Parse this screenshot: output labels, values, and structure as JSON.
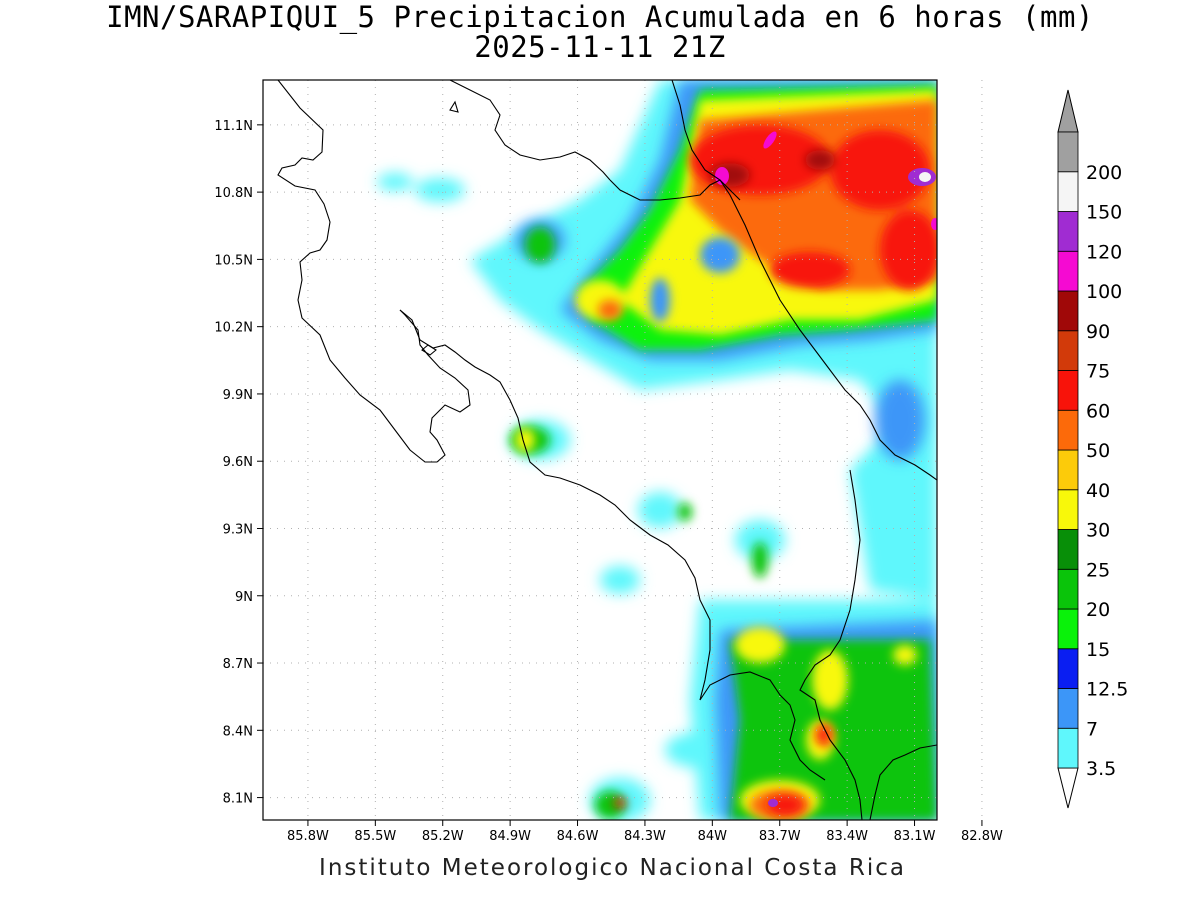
{
  "title": {
    "line1": "IMN/SARAPIQUI_5 Precipitacion Acumulada en 6 horas (mm)",
    "line2": "2025-11-11 21Z"
  },
  "credit": "Instituto Meteorologico Nacional Costa Rica",
  "map": {
    "lon_range": [
      -86.0,
      -83.0
    ],
    "lat_range": [
      8.0,
      11.3
    ],
    "lon_ticks": [
      {
        "value": -85.8,
        "label": "85.8W"
      },
      {
        "value": -85.5,
        "label": "85.5W"
      },
      {
        "value": -85.2,
        "label": "85.2W"
      },
      {
        "value": -84.9,
        "label": "84.9W"
      },
      {
        "value": -84.6,
        "label": "84.6W"
      },
      {
        "value": -84.3,
        "label": "84.3W"
      },
      {
        "value": -84.0,
        "label": "84W"
      },
      {
        "value": -83.7,
        "label": "83.7W"
      },
      {
        "value": -83.4,
        "label": "83.4W"
      },
      {
        "value": -83.1,
        "label": "83.1W"
      },
      {
        "value": -82.8,
        "label": "82.8W"
      }
    ],
    "lat_ticks": [
      {
        "value": 8.1,
        "label": "8.1N"
      },
      {
        "value": 8.4,
        "label": "8.4N"
      },
      {
        "value": 8.7,
        "label": "8.7N"
      },
      {
        "value": 9.0,
        "label": "9N"
      },
      {
        "value": 9.3,
        "label": "9.3N"
      },
      {
        "value": 9.6,
        "label": "9.6N"
      },
      {
        "value": 9.9,
        "label": "9.9N"
      },
      {
        "value": 10.2,
        "label": "10.2N"
      },
      {
        "value": 10.5,
        "label": "10.5N"
      },
      {
        "value": 10.8,
        "label": "10.8N"
      },
      {
        "value": 11.1,
        "label": "11.1N"
      }
    ],
    "grid": "dotted"
  },
  "colorbar": {
    "levels": [
      {
        "label": "3.5",
        "color": "#5ff7fc"
      },
      {
        "label": "7",
        "color": "#3c96f8"
      },
      {
        "label": "12.5",
        "color": "#0a1ef2"
      },
      {
        "label": "15",
        "color": "#0af20a"
      },
      {
        "label": "20",
        "color": "#0ac40a"
      },
      {
        "label": "25",
        "color": "#088f08"
      },
      {
        "label": "30",
        "color": "#f8f80a"
      },
      {
        "label": "40",
        "color": "#fccb0a"
      },
      {
        "label": "50",
        "color": "#fc6a0a"
      },
      {
        "label": "60",
        "color": "#f8130a"
      },
      {
        "label": "75",
        "color": "#d23a0a"
      },
      {
        "label": "90",
        "color": "#a00808"
      },
      {
        "label": "100",
        "color": "#f50ad2"
      },
      {
        "label": "120",
        "color": "#a02cd2"
      },
      {
        "label": "150",
        "color": "#f5f5f5"
      },
      {
        "label": "200",
        "color": "#a0a0a0"
      }
    ],
    "over_color": "#a0a0a0",
    "under_color": "#ffffff"
  }
}
